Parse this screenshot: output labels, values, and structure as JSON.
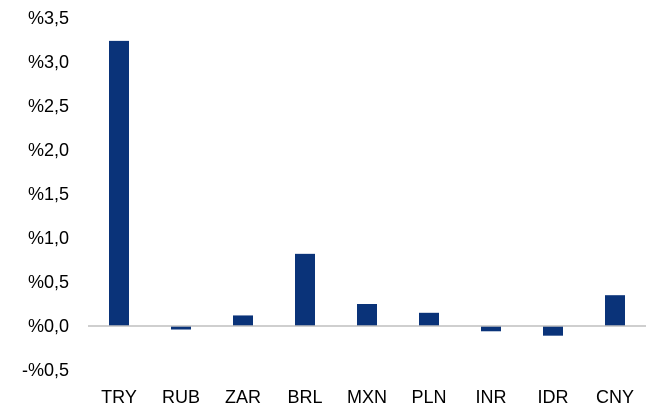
{
  "chart_data": {
    "type": "bar",
    "title": "",
    "xlabel": "",
    "ylabel": "",
    "categories": [
      "TRY",
      "RUB",
      "ZAR",
      "BRL",
      "MXN",
      "PLN",
      "INR",
      "IDR",
      "CNY"
    ],
    "values": [
      3.24,
      -0.04,
      0.12,
      0.82,
      0.25,
      0.15,
      -0.06,
      -0.11,
      0.35
    ],
    "ylim": [
      -0.5,
      3.5
    ],
    "yticks": [
      3.5,
      3.0,
      2.5,
      2.0,
      1.5,
      1.0,
      0.5,
      0.0,
      -0.5
    ],
    "ytick_labels": [
      "%3,5",
      "%3,0",
      "%2,5",
      "%2,0",
      "%1,5",
      "%1,0",
      "%0,5",
      "%0,0",
      "-%0,5"
    ],
    "grid": false,
    "legend": "none",
    "bar_color": "#0a3379",
    "axis_color": "#bfbfbf"
  }
}
